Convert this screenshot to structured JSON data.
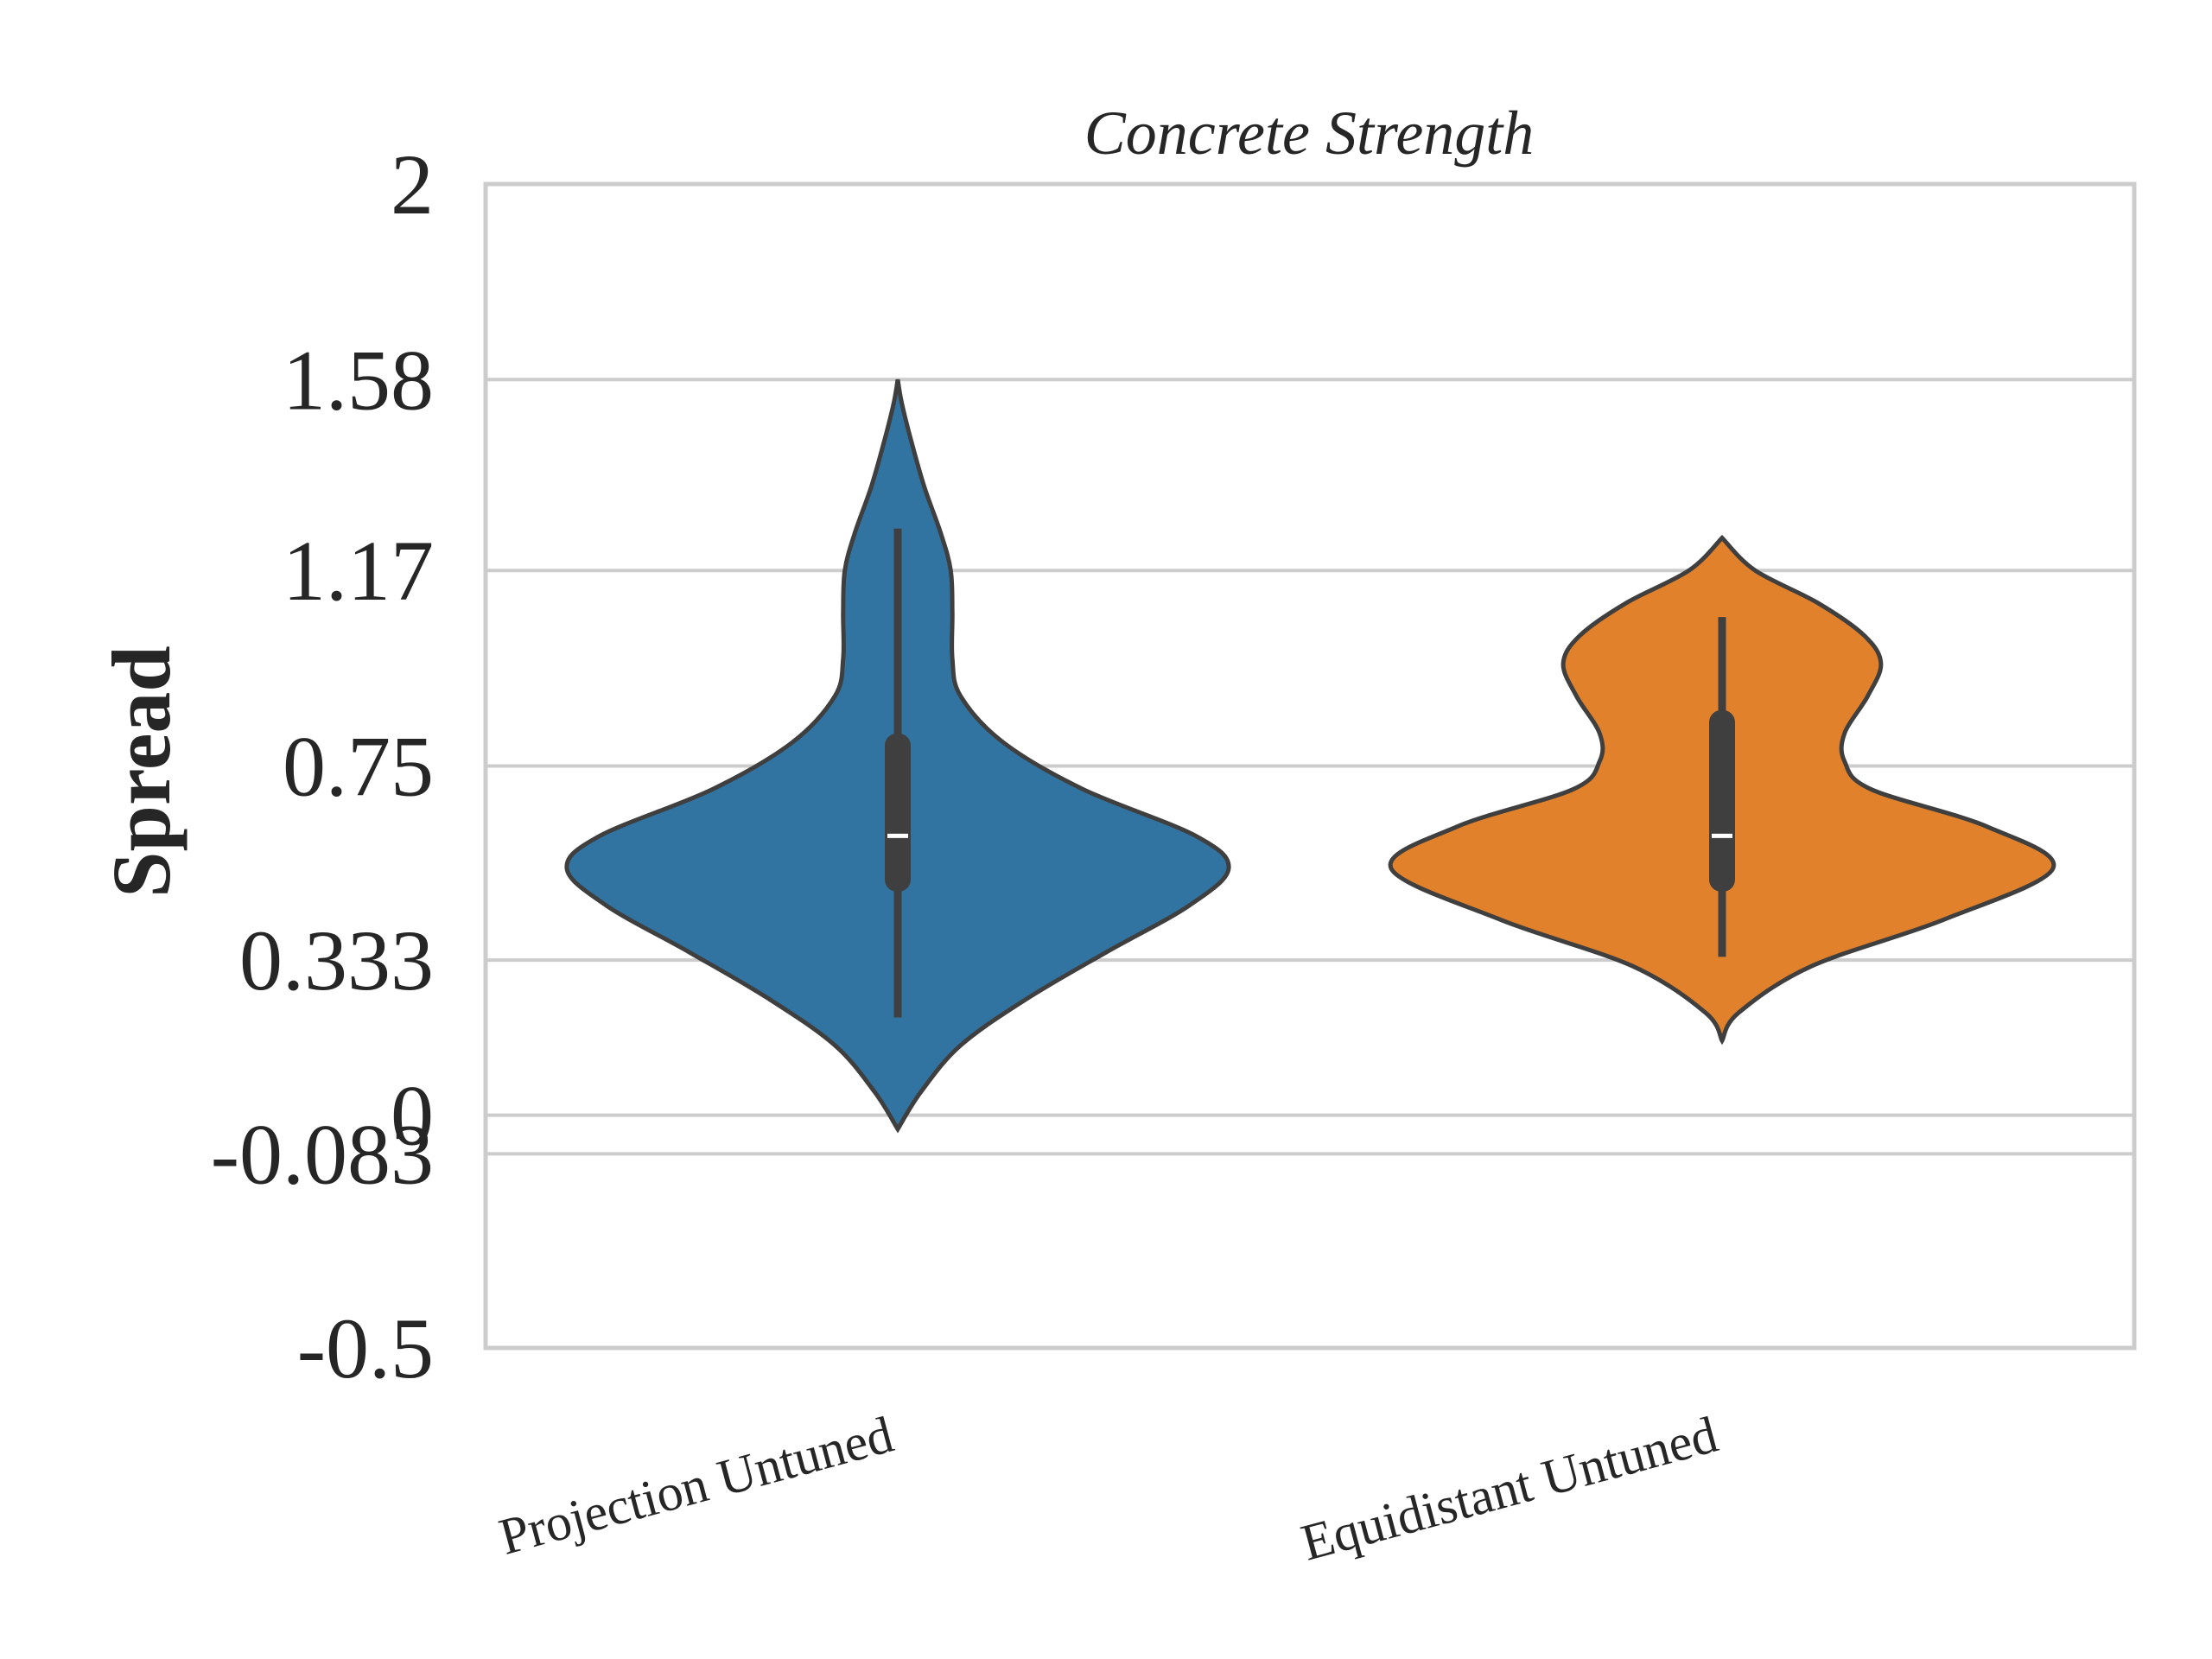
{
  "chart_data": {
    "type": "violin",
    "title": "Concrete Strength",
    "xlabel": "",
    "ylabel": "Spread",
    "ylim": [
      -0.5,
      2
    ],
    "yticks": [
      -0.5,
      -0.083,
      0,
      0.333,
      0.75,
      1.17,
      1.58,
      2
    ],
    "ytick_labels": [
      "-0.5",
      "-0.083",
      "0",
      "0.333",
      "0.75",
      "1.17",
      "1.58",
      "2"
    ],
    "grid": true,
    "categories": [
      "Projection Untuned",
      "Equidistant Untuned"
    ],
    "series": [
      {
        "category": "Projection Untuned",
        "color": "#3274a1",
        "whisker_low": 0.21,
        "q1": 0.48,
        "median": 0.6,
        "q3": 0.82,
        "whisker_high": 1.26,
        "density": [
          [
            -0.03,
            0.0
          ],
          [
            0.05,
            0.07
          ],
          [
            0.15,
            0.19
          ],
          [
            0.25,
            0.39
          ],
          [
            0.35,
            0.63
          ],
          [
            0.45,
            0.88
          ],
          [
            0.53,
            1.0
          ],
          [
            0.6,
            0.9
          ],
          [
            0.7,
            0.56
          ],
          [
            0.8,
            0.32
          ],
          [
            0.9,
            0.19
          ],
          [
            0.98,
            0.165
          ],
          [
            1.08,
            0.165
          ],
          [
            1.17,
            0.16
          ],
          [
            1.25,
            0.13
          ],
          [
            1.35,
            0.08
          ],
          [
            1.45,
            0.04
          ],
          [
            1.53,
            0.012
          ],
          [
            1.58,
            0.0
          ]
        ]
      },
      {
        "category": "Equidistant Untuned",
        "color": "#e1812c",
        "whisker_low": 0.34,
        "q1": 0.48,
        "median": 0.6,
        "q3": 0.87,
        "whisker_high": 1.07,
        "density": [
          [
            0.16,
            0.0
          ],
          [
            0.22,
            0.05
          ],
          [
            0.32,
            0.27
          ],
          [
            0.42,
            0.67
          ],
          [
            0.53,
            1.0
          ],
          [
            0.62,
            0.8
          ],
          [
            0.7,
            0.45
          ],
          [
            0.76,
            0.37
          ],
          [
            0.82,
            0.37
          ],
          [
            0.9,
            0.44
          ],
          [
            0.97,
            0.48
          ],
          [
            1.03,
            0.43
          ],
          [
            1.1,
            0.29
          ],
          [
            1.17,
            0.1
          ],
          [
            1.24,
            0.0
          ]
        ]
      }
    ]
  }
}
